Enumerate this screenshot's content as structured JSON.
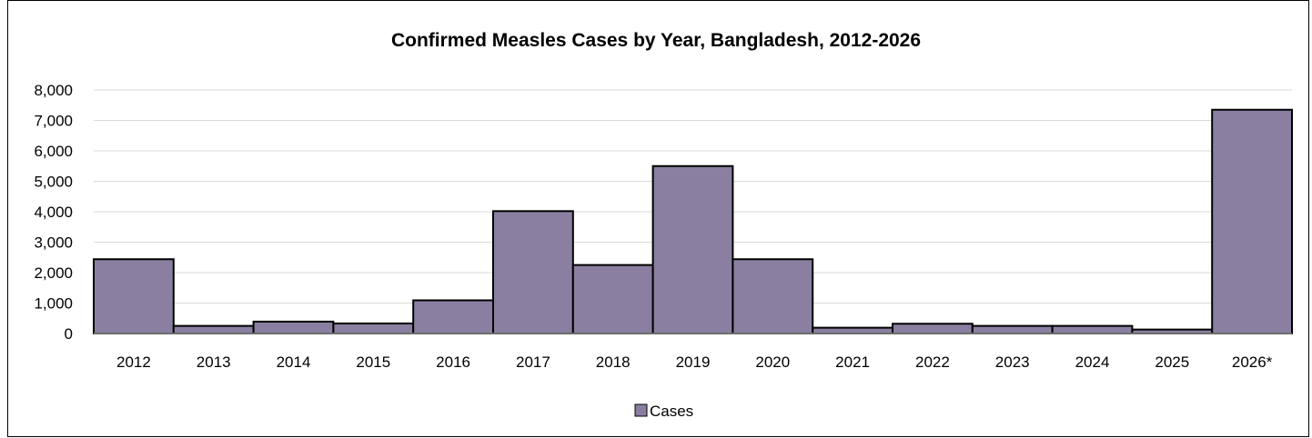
{
  "chart_data": {
    "type": "bar",
    "title": "Confirmed Measles Cases by Year, Bangladesh, 2012-2026",
    "categories": [
      "2012",
      "2013",
      "2014",
      "2015",
      "2016",
      "2017",
      "2018",
      "2019",
      "2020",
      "2021",
      "2022",
      "2023",
      "2024",
      "2025",
      "2026*"
    ],
    "series": [
      {
        "name": "Cases",
        "color": "#8a7fa0",
        "values": [
          2440,
          250,
          390,
          330,
          1090,
          4020,
          2250,
          5500,
          2440,
          190,
          320,
          250,
          250,
          130,
          7350
        ]
      }
    ],
    "ylim": [
      0,
      8000
    ],
    "yticks": [
      0,
      1000,
      2000,
      3000,
      4000,
      5000,
      6000,
      7000,
      8000
    ],
    "ytick_labels": [
      "0",
      "1,000",
      "2,000",
      "3,000",
      "4,000",
      "5,000",
      "6,000",
      "7,000",
      "8,000"
    ],
    "xlabel": "",
    "ylabel": "",
    "grid": true,
    "legend": "bottom"
  }
}
